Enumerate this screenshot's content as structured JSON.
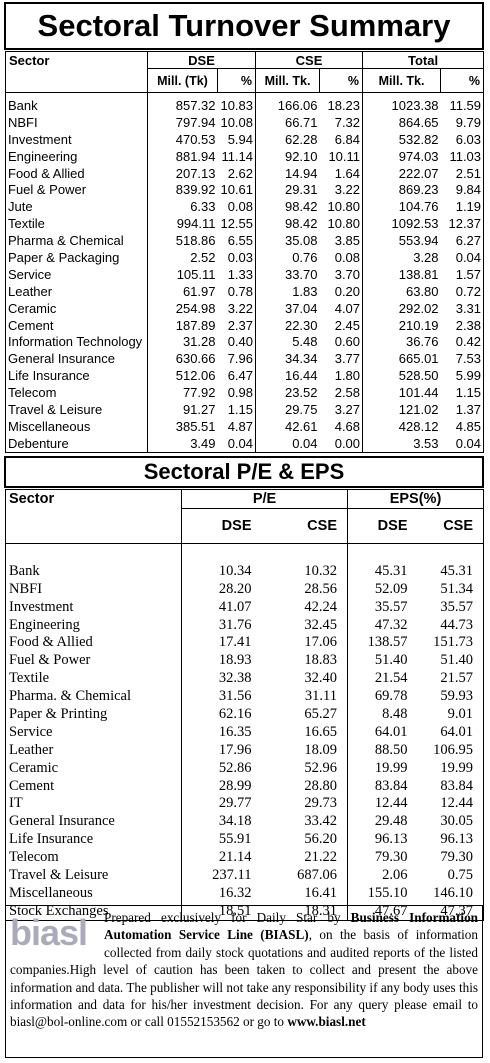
{
  "turnover": {
    "title": "Sectoral Turnover Summary",
    "headers": [
      "Sector",
      "DSE",
      "CSE",
      "Total"
    ],
    "subheaders": [
      "Mill. (Tk)",
      "%",
      "Mill. Tk.",
      "%",
      "Mill. Tk.",
      "%"
    ],
    "rows": [
      [
        "Bank",
        "857.32",
        "10.83",
        "166.06",
        "18.23",
        "1023.38",
        "11.59"
      ],
      [
        "NBFI",
        "797.94",
        "10.08",
        "66.71",
        "7.32",
        "864.65",
        "9.79"
      ],
      [
        "Investment",
        "470.53",
        "5.94",
        "62.28",
        "6.84",
        "532.82",
        "6.03"
      ],
      [
        "Engineering",
        "881.94",
        "11.14",
        "92.10",
        "10.11",
        "974.03",
        "11.03"
      ],
      [
        "Food & Allied",
        "207.13",
        "2.62",
        "14.94",
        "1.64",
        "222.07",
        "2.51"
      ],
      [
        "Fuel & Power",
        "839.92",
        "10.61",
        "29.31",
        "3.22",
        "869.23",
        "9.84"
      ],
      [
        "Jute",
        "6.33",
        "0.08",
        "98.42",
        "10.80",
        "104.76",
        "1.19"
      ],
      [
        "Textile",
        "994.11",
        "12.55",
        "98.42",
        "10.80",
        "1092.53",
        "12.37"
      ],
      [
        "Pharma & Chemical",
        "518.86",
        "6.55",
        "35.08",
        "3.85",
        "553.94",
        "6.27"
      ],
      [
        "Paper & Packaging",
        "2.52",
        "0.03",
        "0.76",
        "0.08",
        "3.28",
        "0.04"
      ],
      [
        "Service",
        "105.11",
        "1.33",
        "33.70",
        "3.70",
        "138.81",
        "1.57"
      ],
      [
        "Leather",
        "61.97",
        "0.78",
        "1.83",
        "0.20",
        "63.80",
        "0.72"
      ],
      [
        "Ceramic",
        "254.98",
        "3.22",
        "37.04",
        "4.07",
        "292.02",
        "3.31"
      ],
      [
        "Cement",
        "187.89",
        "2.37",
        "22.30",
        "2.45",
        "210.19",
        "2.38"
      ],
      [
        "Information Technology",
        "31.28",
        "0.40",
        "5.48",
        "0.60",
        "36.76",
        "0.42"
      ],
      [
        "General Insurance",
        "630.66",
        "7.96",
        "34.34",
        "3.77",
        "665.01",
        "7.53"
      ],
      [
        "Life Insurance",
        "512.06",
        "6.47",
        "16.44",
        "1.80",
        "528.50",
        "5.99"
      ],
      [
        "Telecom",
        "77.92",
        "0.98",
        "23.52",
        "2.58",
        "101.44",
        "1.15"
      ],
      [
        "Travel & Leisure",
        "91.27",
        "1.15",
        "29.75",
        "3.27",
        "121.02",
        "1.37"
      ],
      [
        "Miscellaneous",
        "385.51",
        "4.87",
        "42.61",
        "4.68",
        "428.12",
        "4.85"
      ],
      [
        "Debenture",
        "3.49",
        "0.04",
        "0.04",
        "0.00",
        "3.53",
        "0.04"
      ]
    ]
  },
  "pe": {
    "title": "Sectoral P/E & EPS",
    "headers": [
      "Sector",
      "P/E",
      "EPS(%)"
    ],
    "subheaders": [
      "DSE",
      "CSE",
      "DSE",
      "CSE"
    ],
    "rows": [
      [
        "Bank",
        "10.34",
        "10.32",
        "45.31",
        "45.31"
      ],
      [
        "NBFI",
        "28.20",
        "28.56",
        "52.09",
        "51.34"
      ],
      [
        "Investment",
        "41.07",
        "42.24",
        "35.57",
        "35.57"
      ],
      [
        "Engineering",
        "31.76",
        "32.45",
        "47.32",
        "44.73"
      ],
      [
        "Food & Allied",
        "17.41",
        "17.06",
        "138.57",
        "151.73"
      ],
      [
        "Fuel & Power",
        "18.93",
        "18.83",
        "51.40",
        "51.40"
      ],
      [
        "Textile",
        "32.38",
        "32.40",
        "21.54",
        "21.57"
      ],
      [
        "Pharma. & Chemical",
        "31.56",
        "31.11",
        "69.78",
        "59.93"
      ],
      [
        "Paper & Printing",
        "62.16",
        "65.27",
        "8.48",
        "9.01"
      ],
      [
        "Service",
        "16.35",
        "16.65",
        "64.01",
        "64.01"
      ],
      [
        "Leather",
        "17.96",
        "18.09",
        "88.50",
        "106.95"
      ],
      [
        "Ceramic",
        "52.86",
        "52.96",
        "19.99",
        "19.99"
      ],
      [
        "Cement",
        "28.99",
        "28.80",
        "83.84",
        "83.84"
      ],
      [
        "IT",
        "29.77",
        "29.73",
        "12.44",
        "12.44"
      ],
      [
        "General Insurance",
        "34.18",
        "33.42",
        "29.48",
        "30.05"
      ],
      [
        "Life Insurance",
        "55.91",
        "56.20",
        "96.13",
        "96.13"
      ],
      [
        "Telecom",
        "21.14",
        "21.22",
        "79.30",
        "79.30"
      ],
      [
        "Travel & Leisure",
        "237.11",
        "687.06",
        "2.06",
        "0.75"
      ],
      [
        "Miscellaneous",
        "16.32",
        "16.41",
        "155.10",
        "146.10"
      ],
      [
        "Stock Exchanges",
        "18.51",
        "18.31",
        "47.67",
        "47.37"
      ]
    ]
  },
  "footer": {
    "logo": "biasl",
    "text": [
      "Prepared exclusively for Daily Star by ",
      "Business Information Automation Service Line (BIASL)",
      ", on the basis of information collected from daily stock quotations and audited reports of the listed companies.High level of caution has been taken to collect and present the above information and data. The publisher will not take any responsibility if any body uses this information and data for his/her investment decision. For any query please email to biasl@bol-online.com or call 01552153562 or go to ",
      "www.biasl.net"
    ]
  }
}
